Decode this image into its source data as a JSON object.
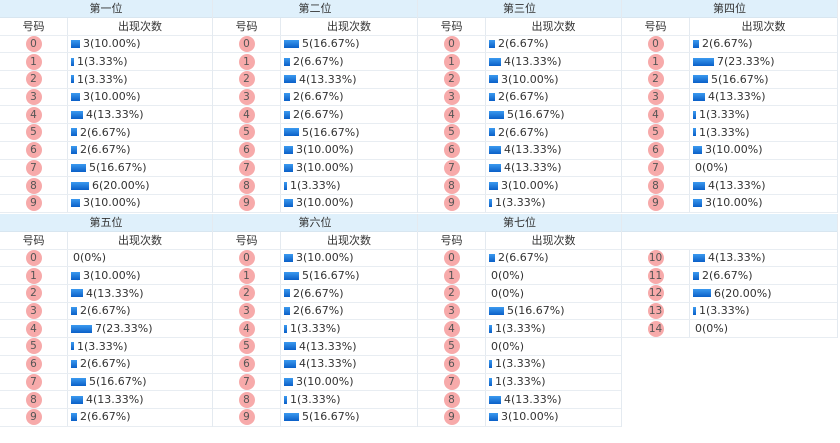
{
  "header_labels": {
    "number": "号码",
    "count": "出现次数"
  },
  "blocks": [
    {
      "groups": [
        {
          "title": "第一位",
          "rows": [
            {
              "n": "0",
              "c": 3,
              "t": "3(10.00%)"
            },
            {
              "n": "1",
              "c": 1,
              "t": "1(3.33%)"
            },
            {
              "n": "2",
              "c": 1,
              "t": "1(3.33%)"
            },
            {
              "n": "3",
              "c": 3,
              "t": "3(10.00%)"
            },
            {
              "n": "4",
              "c": 4,
              "t": "4(13.33%)"
            },
            {
              "n": "5",
              "c": 2,
              "t": "2(6.67%)"
            },
            {
              "n": "6",
              "c": 2,
              "t": "2(6.67%)"
            },
            {
              "n": "7",
              "c": 5,
              "t": "5(16.67%)"
            },
            {
              "n": "8",
              "c": 6,
              "t": "6(20.00%)"
            },
            {
              "n": "9",
              "c": 3,
              "t": "3(10.00%)"
            }
          ]
        },
        {
          "title": "第二位",
          "rows": [
            {
              "n": "0",
              "c": 5,
              "t": "5(16.67%)"
            },
            {
              "n": "1",
              "c": 2,
              "t": "2(6.67%)"
            },
            {
              "n": "2",
              "c": 4,
              "t": "4(13.33%)"
            },
            {
              "n": "3",
              "c": 2,
              "t": "2(6.67%)"
            },
            {
              "n": "4",
              "c": 2,
              "t": "2(6.67%)"
            },
            {
              "n": "5",
              "c": 5,
              "t": "5(16.67%)"
            },
            {
              "n": "6",
              "c": 3,
              "t": "3(10.00%)"
            },
            {
              "n": "7",
              "c": 3,
              "t": "3(10.00%)"
            },
            {
              "n": "8",
              "c": 1,
              "t": "1(3.33%)"
            },
            {
              "n": "9",
              "c": 3,
              "t": "3(10.00%)"
            }
          ]
        },
        {
          "title": "第三位",
          "rows": [
            {
              "n": "0",
              "c": 2,
              "t": "2(6.67%)"
            },
            {
              "n": "1",
              "c": 4,
              "t": "4(13.33%)"
            },
            {
              "n": "2",
              "c": 3,
              "t": "3(10.00%)"
            },
            {
              "n": "3",
              "c": 2,
              "t": "2(6.67%)"
            },
            {
              "n": "4",
              "c": 5,
              "t": "5(16.67%)"
            },
            {
              "n": "5",
              "c": 2,
              "t": "2(6.67%)"
            },
            {
              "n": "6",
              "c": 4,
              "t": "4(13.33%)"
            },
            {
              "n": "7",
              "c": 4,
              "t": "4(13.33%)"
            },
            {
              "n": "8",
              "c": 3,
              "t": "3(10.00%)"
            },
            {
              "n": "9",
              "c": 1,
              "t": "1(3.33%)"
            }
          ]
        },
        {
          "title": "第四位",
          "rows": [
            {
              "n": "0",
              "c": 2,
              "t": "2(6.67%)"
            },
            {
              "n": "1",
              "c": 7,
              "t": "7(23.33%)"
            },
            {
              "n": "2",
              "c": 5,
              "t": "5(16.67%)"
            },
            {
              "n": "3",
              "c": 4,
              "t": "4(13.33%)"
            },
            {
              "n": "4",
              "c": 1,
              "t": "1(3.33%)"
            },
            {
              "n": "5",
              "c": 1,
              "t": "1(3.33%)"
            },
            {
              "n": "6",
              "c": 3,
              "t": "3(10.00%)"
            },
            {
              "n": "7",
              "c": 0,
              "t": "0(0%)"
            },
            {
              "n": "8",
              "c": 4,
              "t": "4(13.33%)"
            },
            {
              "n": "9",
              "c": 3,
              "t": "3(10.00%)"
            }
          ]
        }
      ]
    },
    {
      "groups": [
        {
          "title": "第五位",
          "rows": [
            {
              "n": "0",
              "c": 0,
              "t": "0(0%)"
            },
            {
              "n": "1",
              "c": 3,
              "t": "3(10.00%)"
            },
            {
              "n": "2",
              "c": 4,
              "t": "4(13.33%)"
            },
            {
              "n": "3",
              "c": 2,
              "t": "2(6.67%)"
            },
            {
              "n": "4",
              "c": 7,
              "t": "7(23.33%)"
            },
            {
              "n": "5",
              "c": 1,
              "t": "1(3.33%)"
            },
            {
              "n": "6",
              "c": 2,
              "t": "2(6.67%)"
            },
            {
              "n": "7",
              "c": 5,
              "t": "5(16.67%)"
            },
            {
              "n": "8",
              "c": 4,
              "t": "4(13.33%)"
            },
            {
              "n": "9",
              "c": 2,
              "t": "2(6.67%)"
            }
          ]
        },
        {
          "title": "第六位",
          "rows": [
            {
              "n": "0",
              "c": 3,
              "t": "3(10.00%)"
            },
            {
              "n": "1",
              "c": 5,
              "t": "5(16.67%)"
            },
            {
              "n": "2",
              "c": 2,
              "t": "2(6.67%)"
            },
            {
              "n": "3",
              "c": 2,
              "t": "2(6.67%)"
            },
            {
              "n": "4",
              "c": 1,
              "t": "1(3.33%)"
            },
            {
              "n": "5",
              "c": 4,
              "t": "4(13.33%)"
            },
            {
              "n": "6",
              "c": 4,
              "t": "4(13.33%)"
            },
            {
              "n": "7",
              "c": 3,
              "t": "3(10.00%)"
            },
            {
              "n": "8",
              "c": 1,
              "t": "1(3.33%)"
            },
            {
              "n": "9",
              "c": 5,
              "t": "5(16.67%)"
            }
          ]
        },
        {
          "title": "第七位",
          "rows": [
            {
              "n": "0",
              "c": 2,
              "t": "2(6.67%)"
            },
            {
              "n": "1",
              "c": 0,
              "t": "0(0%)"
            },
            {
              "n": "2",
              "c": 0,
              "t": "0(0%)"
            },
            {
              "n": "3",
              "c": 5,
              "t": "5(16.67%)"
            },
            {
              "n": "4",
              "c": 1,
              "t": "1(3.33%)"
            },
            {
              "n": "5",
              "c": 0,
              "t": "0(0%)"
            },
            {
              "n": "6",
              "c": 1,
              "t": "1(3.33%)"
            },
            {
              "n": "7",
              "c": 1,
              "t": "1(3.33%)"
            },
            {
              "n": "8",
              "c": 4,
              "t": "4(13.33%)"
            },
            {
              "n": "9",
              "c": 3,
              "t": "3(10.00%)"
            }
          ]
        },
        {
          "title": "",
          "no_header": true,
          "rows": [
            {
              "n": "10",
              "c": 4,
              "t": "4(13.33%)"
            },
            {
              "n": "11",
              "c": 2,
              "t": "2(6.67%)"
            },
            {
              "n": "12",
              "c": 6,
              "t": "6(20.00%)"
            },
            {
              "n": "13",
              "c": 1,
              "t": "1(3.33%)"
            },
            {
              "n": "14",
              "c": 0,
              "t": "0(0%)"
            }
          ]
        }
      ]
    }
  ],
  "colors": {
    "title_bg": "#dff0fb",
    "ball": "#f7aaaa",
    "bar": "#0a6fd8"
  }
}
